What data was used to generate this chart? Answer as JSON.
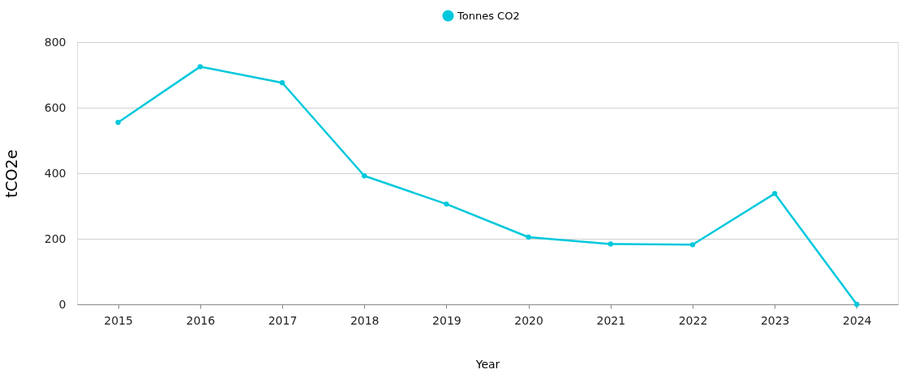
{
  "chart_data": {
    "type": "line",
    "xlabel": "Year",
    "ylabel": "tCO2e",
    "categories": [
      "2015",
      "2016",
      "2017",
      "2018",
      "2019",
      "2020",
      "2021",
      "2022",
      "2023",
      "2024"
    ],
    "series": [
      {
        "name": "Tonnes CO2",
        "color": "#00c8dc",
        "values": [
          555,
          725,
          676,
          392,
          306,
          205,
          184,
          182,
          338,
          0
        ]
      }
    ],
    "ylim": [
      0,
      800
    ],
    "yticks": [
      0,
      200,
      400,
      600,
      800
    ],
    "grid": "y",
    "legend": "top",
    "marker": "circle",
    "line_style": "solid"
  }
}
